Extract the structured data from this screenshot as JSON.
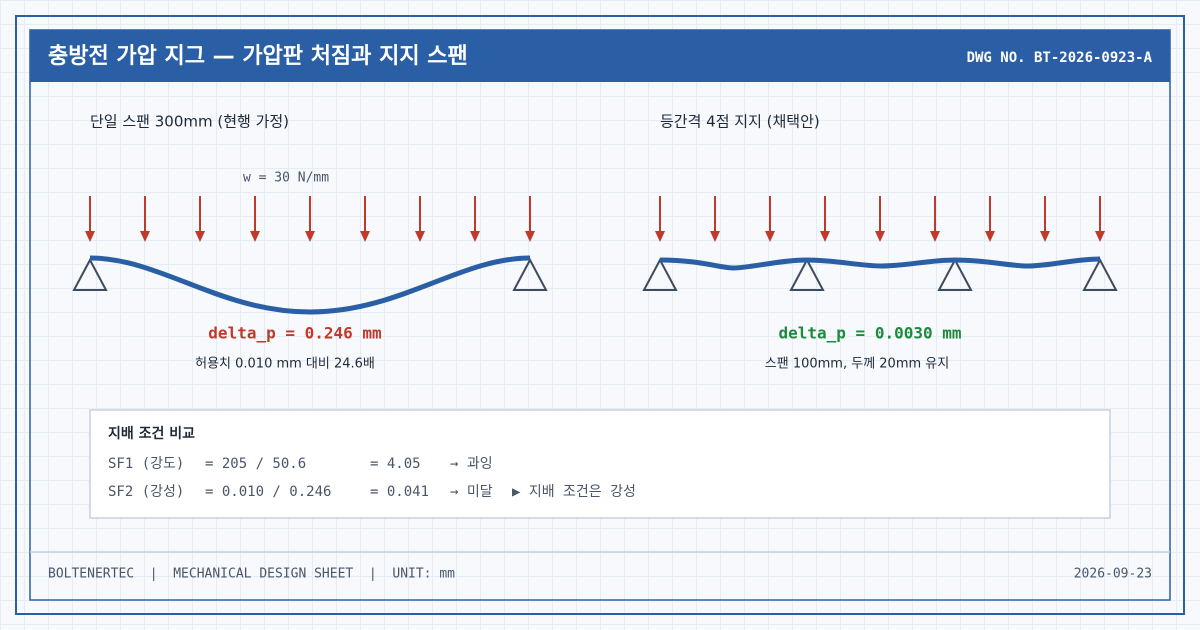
{
  "header": {
    "title": "충방전 가압 지그 — 가압판 처짐과 지지 스팬",
    "dwg_no": "DWG NO. BT-2026-0923-A"
  },
  "panels": [
    {
      "title": "단일 스팬 300mm (현행 가정)",
      "load_label": "w = 30 N/mm",
      "result": "delta_p = 0.246 mm",
      "note": "허용치 0.010 mm 대비 24.6배"
    },
    {
      "title": "등간격 4점 지지 (채택안)",
      "result": "delta_p = 0.0030 mm",
      "note": "스팬 100mm, 두께 20mm 유지"
    }
  ],
  "comparison": {
    "title": "지배 조건 비교",
    "rows": [
      [
        "SF1 (강도)",
        "= 205 / 50.6",
        "= 4.05",
        "→ 과잉"
      ],
      [
        "SF2 (강성)",
        "= 0.010 / 0.246",
        "= 0.041",
        "→ 미달",
        "▶ 지배 조건은 강성"
      ]
    ]
  },
  "footer": {
    "left": "BOLTENERTEC  |  MECHANICAL DESIGN SHEET  |  UNIT: mm",
    "date": "2026-09-23"
  }
}
